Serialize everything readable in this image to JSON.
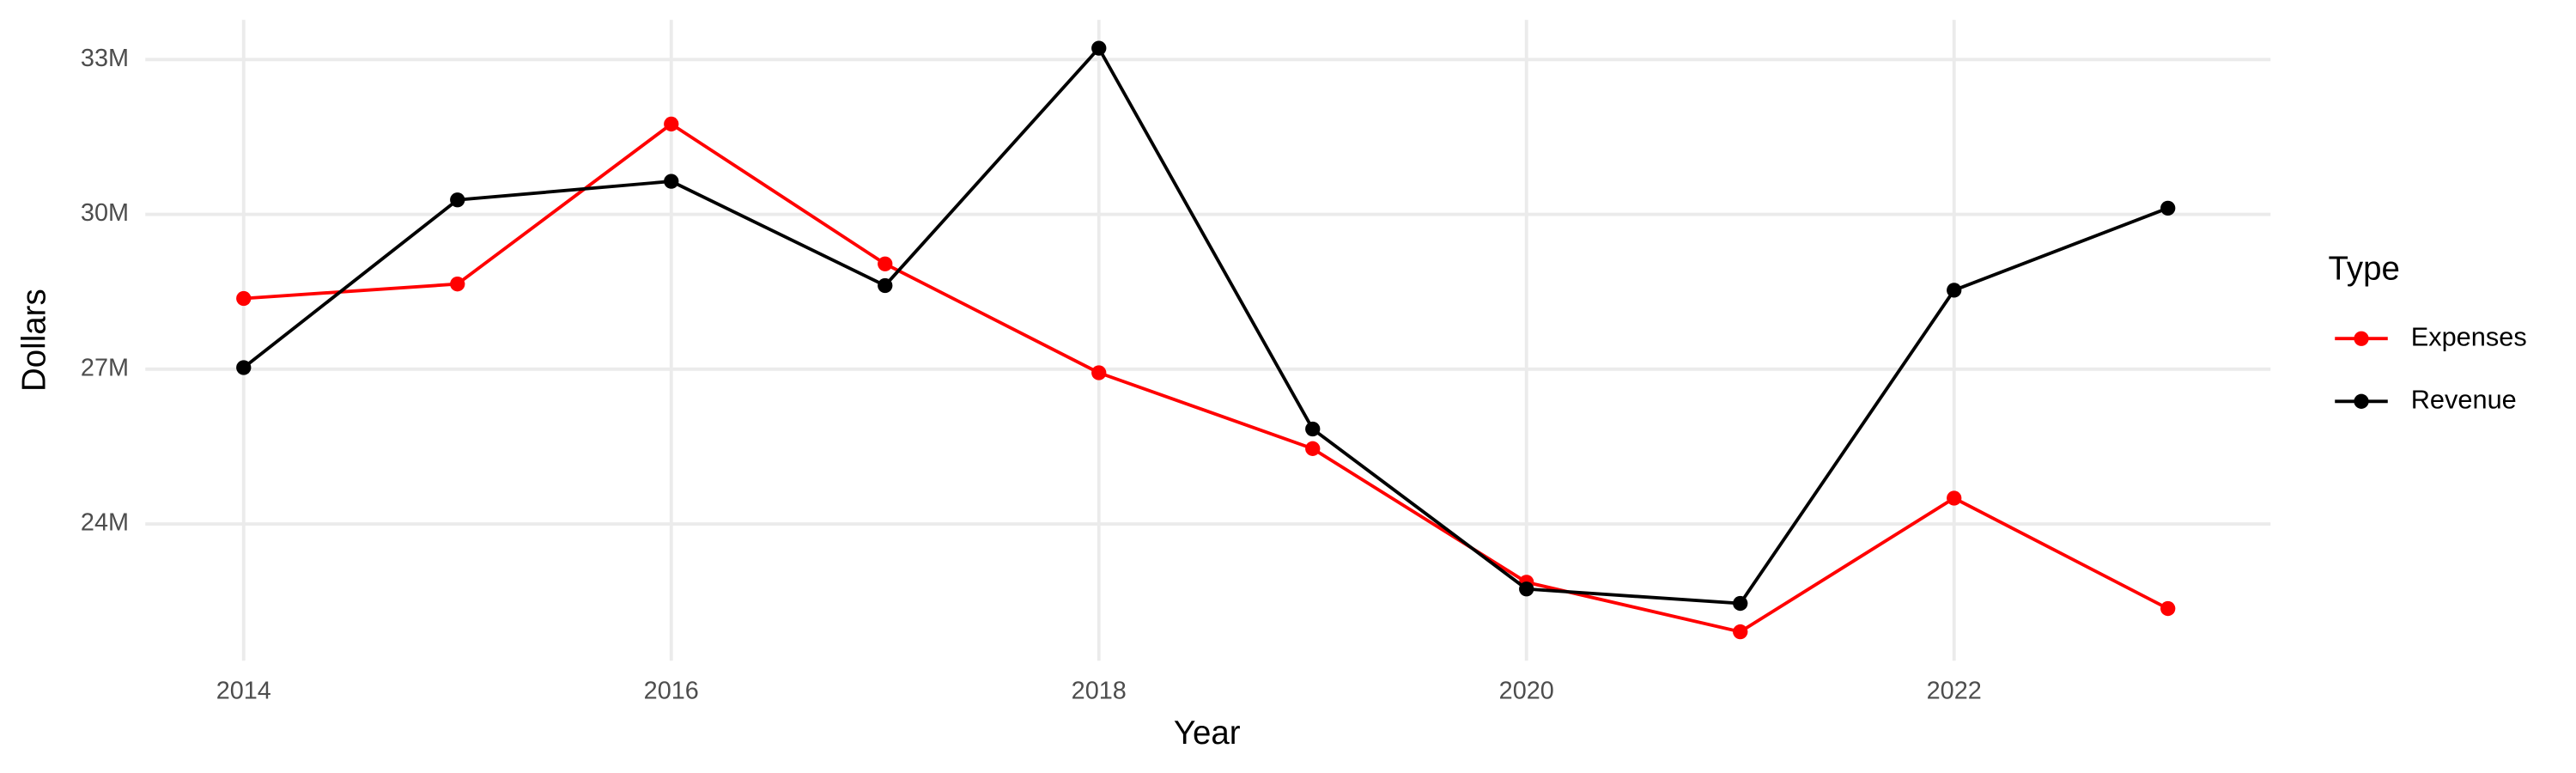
{
  "chart_data": {
    "type": "line",
    "x_label": "Year",
    "y_label": "Dollars",
    "legend_title": "Type",
    "x": [
      2014,
      2015,
      2016,
      2017,
      2018,
      2019,
      2020,
      2021,
      2022,
      2023
    ],
    "series": [
      {
        "name": "Expenses",
        "color": "#ff0000",
        "values": [
          28370000,
          28650000,
          31750000,
          29040000,
          26930000,
          25460000,
          22870000,
          21910000,
          24500000,
          22360000
        ]
      },
      {
        "name": "Revenue",
        "color": "#000000",
        "values": [
          27030000,
          30280000,
          30640000,
          28620000,
          33220000,
          25840000,
          22740000,
          22460000,
          28530000,
          30120000
        ]
      }
    ],
    "xlim": [
      2013.54,
      2023.48
    ],
    "xticks": [
      2014,
      2016,
      2018,
      2020,
      2022
    ],
    "ylim": [
      21350000,
      33770000
    ],
    "yticks": [
      {
        "value": 24000000,
        "label": "24M"
      },
      {
        "value": 27000000,
        "label": "27M"
      },
      {
        "value": 30000000,
        "label": "30M"
      },
      {
        "value": 33000000,
        "label": "33M"
      }
    ],
    "grid": true,
    "legend": "right"
  }
}
